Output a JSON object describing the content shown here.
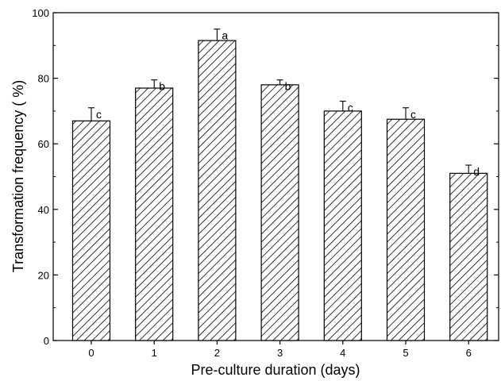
{
  "chart_data": {
    "type": "bar",
    "categories": [
      "0",
      "1",
      "2",
      "3",
      "4",
      "5",
      "6"
    ],
    "values": [
      67,
      77,
      91.5,
      78,
      70,
      67.5,
      51
    ],
    "errors": [
      4,
      2.5,
      3.5,
      1.5,
      3,
      3.5,
      2.5
    ],
    "significance": [
      "c",
      "b",
      "a",
      "b",
      "c",
      "c",
      "d"
    ],
    "xlabel": "Pre-culture duration (days)",
    "ylabel": "Transformation frequency ( %)",
    "ylim": [
      0,
      100
    ],
    "yticks": [
      "0",
      "20",
      "40",
      "60",
      "80",
      "100"
    ],
    "bar_pattern": "diagonal-hatch",
    "grid": false,
    "colors": {
      "bar_fill": "#ffffff",
      "hatch": "#000000",
      "axis": "#000000"
    }
  }
}
